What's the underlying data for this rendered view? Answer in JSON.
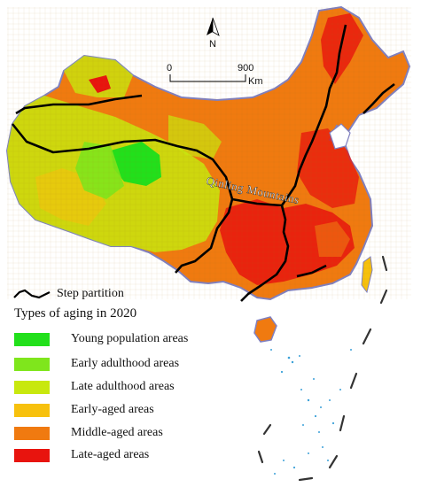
{
  "north_arrow": {
    "label": "N"
  },
  "scale_bar": {
    "start_label": "0",
    "end_label": "900",
    "unit_label": "Km"
  },
  "mountain_label": "Qinling Mountains",
  "legend": {
    "step_partition_label": "Step partition",
    "title": "Types of aging in 2020",
    "items": [
      {
        "label": "Young population areas",
        "color": "#22e01b"
      },
      {
        "label": "Early adulthood areas",
        "color": "#7fe61c"
      },
      {
        "label": "Late adulthood areas",
        "color": "#c8e80e"
      },
      {
        "label": "Early-aged areas",
        "color": "#f7c10d"
      },
      {
        "label": "Middle-aged areas",
        "color": "#f07a10"
      },
      {
        "label": "Late-aged areas",
        "color": "#e8140e"
      }
    ]
  },
  "colors": {
    "boundary": "#8080c0",
    "step_line": "#000000",
    "islands": "#3aa0d8"
  }
}
